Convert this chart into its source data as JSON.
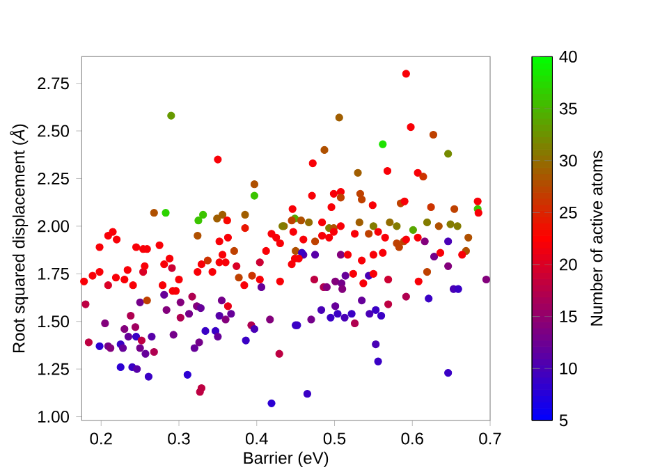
{
  "chart_data": {
    "type": "scatter",
    "xlabel": "Barrier (eV)",
    "ylabel": "Root squared displacement (*Å*)",
    "clabel": "Number of active atoms",
    "xlim": [
      0.175,
      0.7
    ],
    "ylim": [
      0.98,
      2.89
    ],
    "xticks": [
      0.2,
      0.3,
      0.4,
      0.5,
      0.6,
      0.7
    ],
    "yticks": [
      {
        "value": 1.0,
        "label": "1.00"
      },
      {
        "value": 1.25,
        "label": "1.25"
      },
      {
        "value": 1.5,
        "label": "1.50"
      },
      {
        "value": 1.75,
        "label": "1.75"
      },
      {
        "value": 2.0,
        "label": "2.00"
      },
      {
        "value": 2.25,
        "label": "2.25"
      },
      {
        "value": 2.5,
        "label": "2.50"
      },
      {
        "value": 2.75,
        "label": "2.75"
      }
    ],
    "clim": [
      5,
      40
    ],
    "cticks": [
      5,
      10,
      15,
      20,
      25,
      30,
      35,
      40
    ],
    "marker": "circle",
    "grid": false,
    "x": [
      0.29,
      0.35,
      0.397,
      0.397,
      0.268,
      0.283,
      0.325,
      0.331,
      0.324,
      0.349,
      0.356,
      0.362,
      0.385,
      0.385,
      0.198,
      0.209,
      0.215,
      0.22,
      0.178,
      0.189,
      0.198,
      0.209,
      0.219,
      0.23,
      0.234,
      0.241,
      0.245,
      0.254,
      0.259,
      0.275,
      0.254,
      0.256,
      0.281,
      0.288,
      0.291,
      0.279,
      0.292,
      0.296,
      0.3,
      0.18,
      0.205,
      0.184,
      0.198,
      0.209,
      0.212,
      0.225,
      0.228,
      0.23,
      0.238,
      0.235,
      0.245,
      0.244,
      0.252,
      0.25,
      0.257,
      0.265,
      0.268,
      0.25,
      0.259,
      0.225,
      0.24,
      0.246,
      0.261,
      0.281,
      0.284,
      0.293,
      0.302,
      0.302,
      0.313,
      0.317,
      0.323,
      0.328,
      0.334,
      0.32,
      0.326,
      0.311,
      0.329,
      0.327,
      0.347,
      0.35,
      0.352,
      0.355,
      0.36,
      0.363,
      0.367,
      0.386,
      0.393,
      0.397,
      0.417,
      0.429,
      0.419,
      0.45,
      0.324,
      0.329,
      0.337,
      0.343,
      0.352,
      0.356,
      0.363,
      0.371,
      0.352,
      0.36,
      0.374,
      0.377,
      0.384,
      0.394,
      0.404,
      0.404,
      0.406,
      0.412,
      0.419,
      0.425,
      0.43,
      0.435,
      0.446,
      0.449,
      0.43,
      0.449,
      0.45,
      0.592,
      0.506,
      0.487,
      0.472,
      0.562,
      0.598,
      0.627,
      0.646,
      0.53,
      0.568,
      0.607,
      0.614,
      0.471,
      0.499,
      0.508,
      0.508,
      0.533,
      0.535,
      0.496,
      0.549,
      0.585,
      0.59,
      0.624,
      0.684,
      0.684,
      0.685,
      0.654,
      0.433,
      0.445,
      0.447,
      0.457,
      0.467,
      0.484,
      0.493,
      0.499,
      0.508,
      0.532,
      0.55,
      0.571,
      0.58,
      0.601,
      0.619,
      0.634,
      0.649,
      0.658,
      0.672,
      0.46,
      0.475,
      0.484,
      0.493,
      0.499,
      0.526,
      0.544,
      0.556,
      0.565,
      0.58,
      0.589,
      0.607,
      0.669,
      0.664,
      0.646,
      0.616,
      0.628,
      0.646,
      0.653,
      0.659,
      0.695,
      0.621,
      0.592,
      0.608,
      0.619,
      0.636,
      0.646,
      0.465,
      0.556,
      0.553,
      0.452,
      0.47,
      0.483,
      0.495,
      0.501,
      0.504,
      0.513,
      0.522,
      0.526,
      0.535,
      0.545,
      0.553,
      0.56,
      0.569,
      0.474,
      0.486,
      0.49,
      0.501,
      0.509,
      0.51,
      0.514,
      0.524,
      0.537,
      0.544,
      0.55,
      0.569,
      0.475,
      0.46,
      0.458,
      0.445,
      0.454,
      0.508,
      0.517,
      0.535,
      0.55,
      0.562,
      0.583,
      0.592
    ],
    "values": [
      2.58,
      2.35,
      2.22,
      2.16,
      2.07,
      2.07,
      2.03,
      2.06,
      1.95,
      2.04,
      2.06,
      2.03,
      2.06,
      1.99,
      1.89,
      1.95,
      1.97,
      1.93,
      1.71,
      1.74,
      1.76,
      1.69,
      1.73,
      1.72,
      1.77,
      1.69,
      1.89,
      1.88,
      1.88,
      1.9,
      1.76,
      1.79,
      1.8,
      1.83,
      1.78,
      1.69,
      1.66,
      1.66,
      1.72,
      1.59,
      1.49,
      1.39,
      1.37,
      1.37,
      1.36,
      1.38,
      1.36,
      1.46,
      1.53,
      1.42,
      1.42,
      1.47,
      1.4,
      1.36,
      1.33,
      1.42,
      1.34,
      1.6,
      1.61,
      1.26,
      1.26,
      1.25,
      1.21,
      1.64,
      1.56,
      1.43,
      1.6,
      1.52,
      1.54,
      1.63,
      1.58,
      1.57,
      1.45,
      1.36,
      1.39,
      1.22,
      1.15,
      1.13,
      1.45,
      1.42,
      1.53,
      1.61,
      1.51,
      1.58,
      1.54,
      1.4,
      1.48,
      1.46,
      1.51,
      1.33,
      1.07,
      1.48,
      1.76,
      1.8,
      1.82,
      1.76,
      1.92,
      1.85,
      1.94,
      1.87,
      1.81,
      1.81,
      1.79,
      1.73,
      1.69,
      1.74,
      1.72,
      1.81,
      1.68,
      1.87,
      1.96,
      1.94,
      1.91,
      2.0,
      2.09,
      2.04,
      1.71,
      1.83,
      1.87,
      2.8,
      2.57,
      2.4,
      2.33,
      2.43,
      2.52,
      2.48,
      2.38,
      2.28,
      2.29,
      2.28,
      2.26,
      2.16,
      2.17,
      2.18,
      2.15,
      2.17,
      2.14,
      2.1,
      2.11,
      2.12,
      2.13,
      2.1,
      2.13,
      2.09,
      2.07,
      2.09,
      2.0,
      2.03,
      1.97,
      2.03,
      2.02,
      2.02,
      1.99,
      1.99,
      2.0,
      2.02,
      2.0,
      2.02,
      2.0,
      1.98,
      2.02,
      2.0,
      2.01,
      2.0,
      1.94,
      1.93,
      1.92,
      1.95,
      1.94,
      1.97,
      1.96,
      1.96,
      1.97,
      1.94,
      1.91,
      1.92,
      1.94,
      1.87,
      1.85,
      1.92,
      1.92,
      1.84,
      1.79,
      1.67,
      1.67,
      1.72,
      1.62,
      1.63,
      1.71,
      1.76,
      1.86,
      1.23,
      1.12,
      1.29,
      1.38,
      1.48,
      1.51,
      1.56,
      1.52,
      1.58,
      1.54,
      1.52,
      1.54,
      1.49,
      1.61,
      1.54,
      1.56,
      1.53,
      1.59,
      1.72,
      1.68,
      1.68,
      1.71,
      1.7,
      1.67,
      1.74,
      1.75,
      1.7,
      1.74,
      1.75,
      1.72,
      1.85,
      1.85,
      1.86,
      1.8,
      1.83,
      1.85,
      1.85,
      1.82,
      1.85,
      1.86,
      1.89,
      1.93
    ],
    "cvalues": [
      33,
      22,
      28,
      36,
      28,
      37,
      36,
      36,
      28,
      29,
      29,
      23,
      29,
      24,
      22,
      22,
      22,
      22,
      22,
      22,
      22,
      20,
      22,
      22,
      22,
      22,
      22,
      22,
      22,
      22,
      20,
      22,
      22,
      22,
      19,
      22,
      22,
      22,
      22,
      18,
      14,
      18,
      8,
      13,
      14,
      9,
      12,
      14,
      17,
      12,
      9,
      16,
      18,
      13,
      12,
      11,
      17,
      13,
      27,
      8,
      9,
      11,
      9,
      12,
      14,
      13,
      14,
      17,
      13,
      17,
      14,
      12,
      9,
      12,
      13,
      8,
      18,
      18,
      9,
      12,
      11,
      13,
      14,
      21,
      12,
      9,
      17,
      10,
      14,
      18,
      8,
      9,
      22,
      22,
      26,
      22,
      22,
      22,
      22,
      27,
      22,
      22,
      20,
      27,
      22,
      26,
      22,
      19,
      12,
      22,
      22,
      22,
      22,
      30,
      22,
      34,
      22,
      22,
      28,
      22,
      29,
      28,
      22,
      38,
      22,
      27,
      32,
      29,
      22,
      22,
      26,
      22,
      22,
      22,
      27,
      27,
      27,
      22,
      22,
      27,
      22,
      26,
      22,
      36,
      22,
      27,
      31,
      27,
      22,
      28,
      30,
      22,
      31,
      28,
      22,
      29,
      31,
      30,
      31,
      34,
      31,
      28,
      31,
      31,
      28,
      22,
      27,
      22,
      22,
      22,
      22,
      27,
      22,
      22,
      27,
      27,
      22,
      28,
      22,
      10,
      14,
      13,
      14,
      10,
      9,
      14,
      9,
      17,
      22,
      27,
      22,
      9,
      9,
      9,
      10,
      9,
      13,
      10,
      9,
      12,
      9,
      10,
      9,
      17,
      12,
      10,
      9,
      9,
      18,
      18,
      17,
      14,
      14,
      13,
      14,
      12,
      22,
      22,
      10,
      22,
      19,
      11,
      11,
      9,
      22,
      22,
      14,
      22,
      22,
      22,
      22,
      27,
      22
    ]
  }
}
